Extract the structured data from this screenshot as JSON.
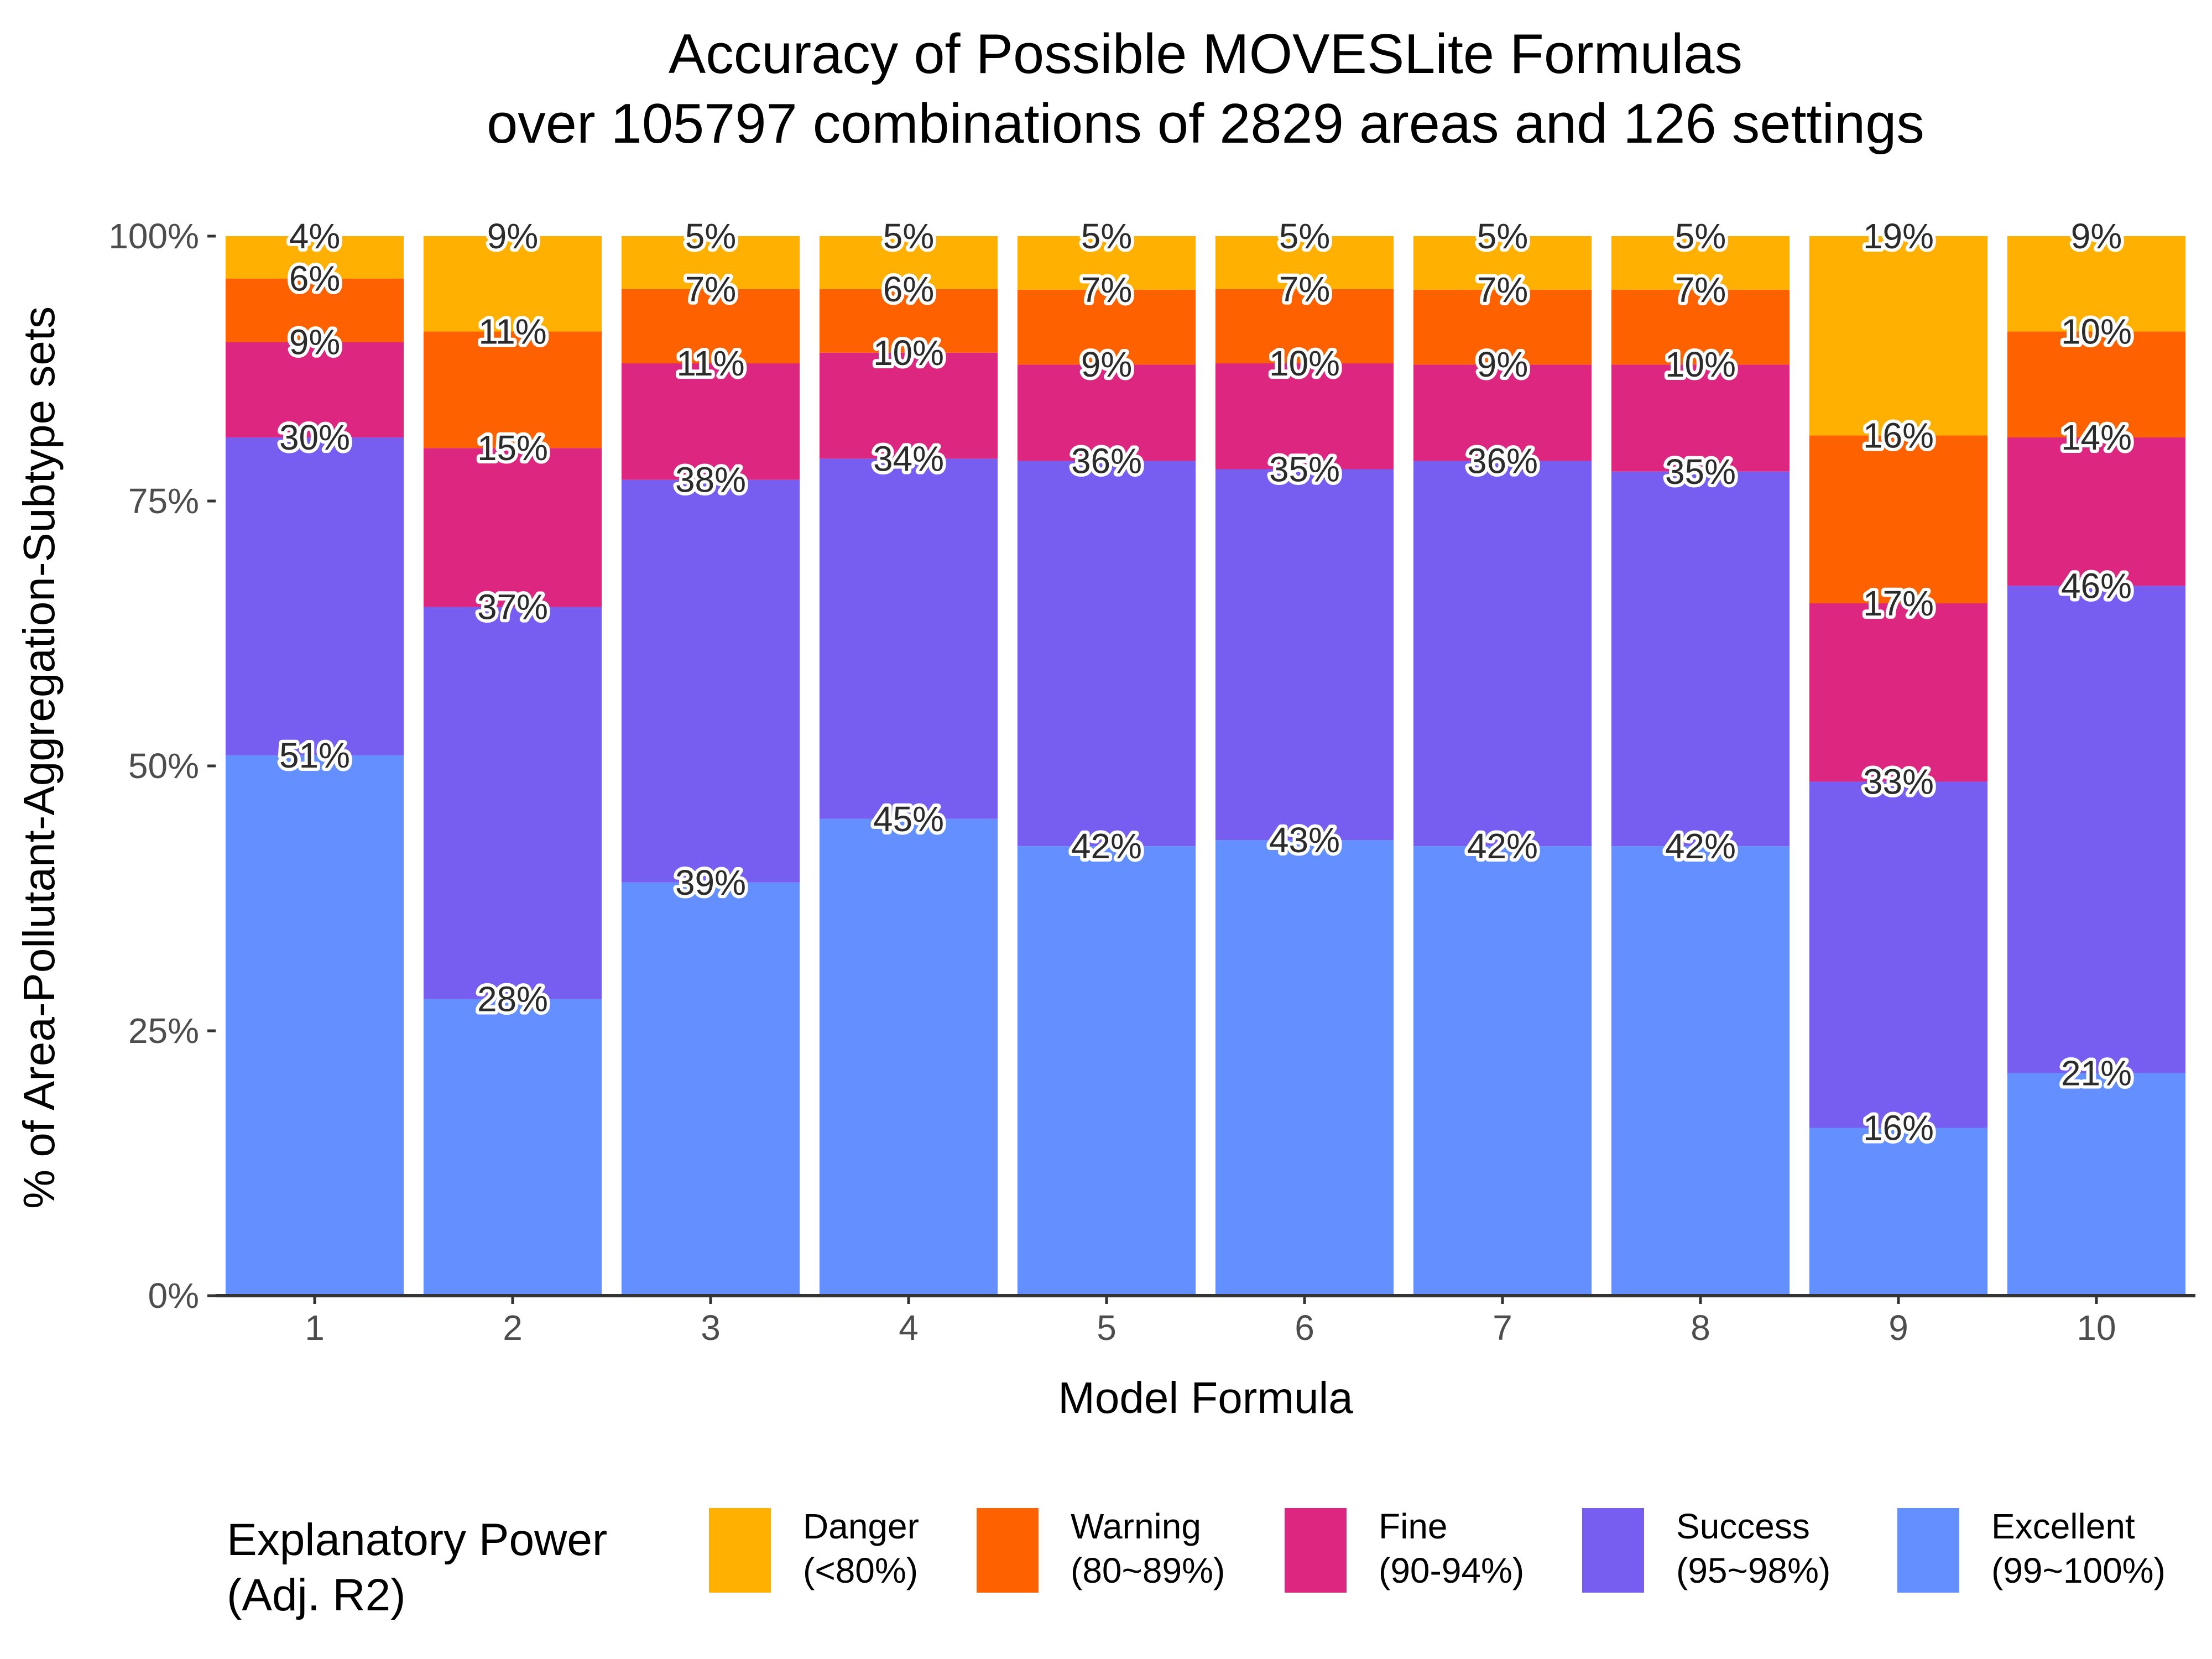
{
  "chart_data": {
    "type": "bar",
    "stacked": true,
    "title": "Accuracy of Possible MOVESLite Formulas",
    "subtitle": "over 105797 combinations of 2829 areas and 126 settings",
    "xlabel": "Model Formula",
    "ylabel": "% of Area-Pollutant-Aggregation-Subtype sets",
    "ylim": [
      0,
      1
    ],
    "y_ticks": [
      "0%",
      "25%",
      "50%",
      "75%",
      "100%"
    ],
    "categories": [
      "1",
      "2",
      "3",
      "4",
      "5",
      "6",
      "7",
      "8",
      "9",
      "10"
    ],
    "legend": {
      "title_line1": "Explanatory Power",
      "title_line2": "(Adj. R2)",
      "position": "bottom"
    },
    "series": [
      {
        "name": "Excellent",
        "range": "(99~100%)",
        "color": "#648FFF",
        "values": [
          0.51,
          0.28,
          0.39,
          0.45,
          0.42,
          0.43,
          0.42,
          0.42,
          0.16,
          0.21
        ],
        "labels": [
          "51%",
          "28%",
          "39%",
          "45%",
          "42%",
          "43%",
          "42%",
          "42%",
          "16%",
          "21%"
        ]
      },
      {
        "name": "Success",
        "range": "(95~98%)",
        "color": "#785EF0",
        "values": [
          0.3,
          0.37,
          0.38,
          0.34,
          0.36,
          0.35,
          0.36,
          0.35,
          0.33,
          0.46
        ],
        "labels": [
          "30%",
          "37%",
          "38%",
          "34%",
          "36%",
          "35%",
          "36%",
          "35%",
          "33%",
          "46%"
        ]
      },
      {
        "name": "Fine",
        "range": "(90-94%)",
        "color": "#DC267F",
        "values": [
          0.09,
          0.15,
          0.11,
          0.1,
          0.09,
          0.1,
          0.09,
          0.1,
          0.17,
          0.14
        ],
        "labels": [
          "9%",
          "15%",
          "11%",
          "10%",
          "9%",
          "10%",
          "9%",
          "10%",
          "17%",
          "14%"
        ]
      },
      {
        "name": "Warning",
        "range": "(80~89%)",
        "color": "#FE6100",
        "values": [
          0.06,
          0.11,
          0.07,
          0.06,
          0.07,
          0.07,
          0.07,
          0.07,
          0.16,
          0.1
        ],
        "labels": [
          "6%",
          "11%",
          "7%",
          "6%",
          "7%",
          "7%",
          "7%",
          "7%",
          "16%",
          "10%"
        ]
      },
      {
        "name": "Danger",
        "range": "(<80%)",
        "color": "#FFB000",
        "values": [
          0.04,
          0.09,
          0.05,
          0.05,
          0.05,
          0.05,
          0.05,
          0.05,
          0.19,
          0.09
        ],
        "labels": [
          "4%",
          "9%",
          "5%",
          "5%",
          "5%",
          "5%",
          "5%",
          "5%",
          "19%",
          "9%"
        ]
      }
    ]
  }
}
